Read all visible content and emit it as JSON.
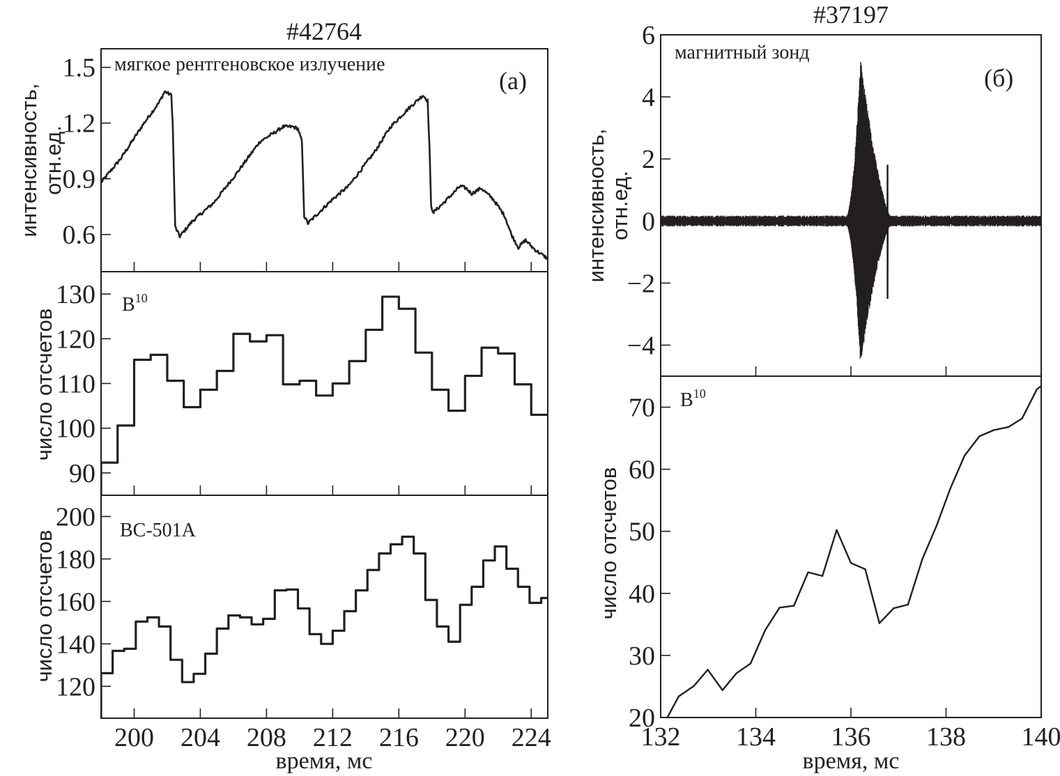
{
  "chart_data": [
    {
      "id": "a_top",
      "type": "line",
      "figure_title": "#42764",
      "panel_tag": "(а)",
      "annotation": "мягкое рентгеновское излучение",
      "xlabel": "время, мс",
      "ylabel_lines": [
        "интенсивность,",
        "отн.ед."
      ],
      "xlim": [
        198,
        225
      ],
      "ylim": [
        0.4,
        1.6
      ],
      "xticks": [
        200,
        204,
        208,
        212,
        216,
        220,
        224
      ],
      "yticks": [
        0.6,
        0.9,
        1.2,
        1.5
      ],
      "ytick_labels": [
        "0.6",
        "0.9",
        "1.2",
        "1.5"
      ],
      "show_xtick_labels": false,
      "series": [
        {
          "name": "мягкое рентгеновское излучение",
          "noisy": true,
          "x": [
            198.0,
            199.2,
            200.6,
            201.5,
            201.85,
            202.25,
            202.33,
            202.48,
            202.76,
            203.5,
            204.8,
            206.2,
            207.6,
            208.5,
            209.0,
            209.6,
            209.9,
            210.14,
            210.28,
            210.5,
            211.3,
            212.0,
            212.95,
            214.5,
            215.5,
            216.6,
            217.46,
            217.74,
            217.85,
            217.95,
            218.1,
            218.7,
            219.7,
            220.05,
            220.4,
            220.97,
            221.7,
            222.4,
            222.8,
            223.22,
            223.65,
            224.2,
            225.0
          ],
          "y": [
            0.88,
            1.01,
            1.2,
            1.31,
            1.37,
            1.35,
            1.2,
            0.64,
            0.59,
            0.67,
            0.77,
            0.93,
            1.1,
            1.15,
            1.18,
            1.18,
            1.17,
            1.1,
            0.7,
            0.66,
            0.73,
            0.79,
            0.86,
            1.04,
            1.18,
            1.28,
            1.35,
            1.32,
            1.07,
            0.75,
            0.72,
            0.77,
            0.86,
            0.85,
            0.82,
            0.85,
            0.79,
            0.7,
            0.6,
            0.53,
            0.57,
            0.52,
            0.47
          ]
        }
      ]
    },
    {
      "id": "a_mid",
      "type": "line",
      "drawstyle": "steps-post",
      "annotation": "B",
      "annotation_sup": "10",
      "ylabel": "число отсчетов",
      "xlim": [
        198,
        225
      ],
      "ylim": [
        85,
        135
      ],
      "xticks": [
        200,
        204,
        208,
        212,
        216,
        220,
        224
      ],
      "yticks": [
        90,
        100,
        110,
        120,
        130
      ],
      "ytick_labels": [
        "90",
        "100",
        "110",
        "120",
        "130"
      ],
      "show_xtick_labels": false,
      "series": [
        {
          "name": "B10",
          "bin_edges": [
            198,
            199,
            200,
            201,
            202,
            203,
            204,
            205,
            206,
            207,
            208,
            209,
            210,
            211,
            212,
            213,
            214,
            215,
            216,
            217,
            218,
            219,
            220,
            221,
            222,
            223,
            224,
            225
          ],
          "values": [
            92.3,
            100.6,
            115.3,
            116.4,
            110.6,
            104.7,
            108.6,
            112.8,
            121.1,
            119.4,
            120.8,
            109.8,
            110.6,
            107.3,
            110.0,
            115.0,
            122.0,
            129.4,
            126.7,
            116.9,
            108.6,
            103.9,
            111.7,
            118.0,
            116.7,
            109.8,
            103.0
          ]
        }
      ]
    },
    {
      "id": "a_bot",
      "type": "line",
      "drawstyle": "steps-post",
      "annotation": "BC-501A",
      "ylabel": "число отсчетов",
      "xlabel": "время, мс",
      "xlim": [
        198,
        225
      ],
      "ylim": [
        105,
        210
      ],
      "xticks": [
        200,
        204,
        208,
        212,
        216,
        220,
        224
      ],
      "xtick_labels": [
        "200",
        "204",
        "208",
        "212",
        "216",
        "220",
        "224"
      ],
      "yticks": [
        120,
        140,
        160,
        180,
        200
      ],
      "ytick_labels": [
        "120",
        "140",
        "160",
        "180",
        "200"
      ],
      "show_xtick_labels": true,
      "series": [
        {
          "name": "BC-501A",
          "bin_start": 198.0,
          "bin_width": 0.7,
          "values": [
            126.2,
            136.7,
            137.7,
            150.5,
            152.5,
            148.2,
            132.5,
            122.0,
            125.9,
            135.4,
            147.2,
            153.4,
            152.5,
            149.2,
            151.8,
            165.2,
            165.6,
            156.7,
            144.6,
            140.0,
            146.2,
            155.4,
            165.2,
            174.8,
            182.6,
            186.9,
            190.5,
            182.6,
            160.7,
            148.2,
            141.0,
            158.4,
            166.9,
            179.3,
            185.9,
            175.4,
            166.9,
            159.3,
            161.6
          ]
        }
      ]
    },
    {
      "id": "b_top",
      "type": "line",
      "figure_title": "#37197",
      "panel_tag": "(б)",
      "annotation": "магнитный зонд",
      "ylabel_lines": [
        "интенсивность,",
        "отн.ед."
      ],
      "xlim": [
        132,
        140
      ],
      "ylim": [
        -5,
        6
      ],
      "xticks": [
        134,
        136,
        138
      ],
      "yticks": [
        -4,
        -2,
        0,
        2,
        4,
        6
      ],
      "ytick_labels": [
        "−4",
        "−2",
        "0",
        "2",
        "4",
        "6"
      ],
      "show_xtick_labels": false,
      "series": [
        {
          "name": "магнитный зонд",
          "kind": "oscillation-envelope",
          "baseline_noise": 0.12,
          "burst": {
            "start": 135.85,
            "peak": 136.2,
            "end": 136.9,
            "max": 5.3,
            "min": -4.7
          },
          "spike": {
            "x": 136.77,
            "max": 1.8,
            "min": -2.5
          }
        }
      ]
    },
    {
      "id": "b_bot",
      "type": "line",
      "annotation": "B",
      "annotation_sup": "10",
      "ylabel": "число отсчетов",
      "xlabel": "время, мс",
      "xlim": [
        132,
        140
      ],
      "ylim": [
        20,
        75
      ],
      "xticks": [
        132,
        134,
        136,
        138,
        140
      ],
      "xtick_labels": [
        "132",
        "134",
        "136",
        "138",
        "140"
      ],
      "yticks": [
        20,
        30,
        40,
        50,
        60,
        70
      ],
      "ytick_labels": [
        "20",
        "30",
        "40",
        "50",
        "60",
        "70"
      ],
      "show_xtick_labels": true,
      "series": [
        {
          "name": "B10",
          "x": [
            132.14,
            132.38,
            132.7,
            132.99,
            133.3,
            133.59,
            133.89,
            134.2,
            134.5,
            134.8,
            135.1,
            135.4,
            135.7,
            136.0,
            136.3,
            136.6,
            136.9,
            137.2,
            137.5,
            137.8,
            138.09,
            138.39,
            138.7,
            139.0,
            139.31,
            139.6,
            139.91,
            140.0
          ],
          "y": [
            20.0,
            23.4,
            25.1,
            27.7,
            24.4,
            27.1,
            28.7,
            34.1,
            37.7,
            38.0,
            43.4,
            42.8,
            50.2,
            44.9,
            43.9,
            35.2,
            37.6,
            38.2,
            45.5,
            50.9,
            56.9,
            62.2,
            65.3,
            66.3,
            66.8,
            68.2,
            72.9,
            73.4
          ]
        }
      ]
    }
  ]
}
